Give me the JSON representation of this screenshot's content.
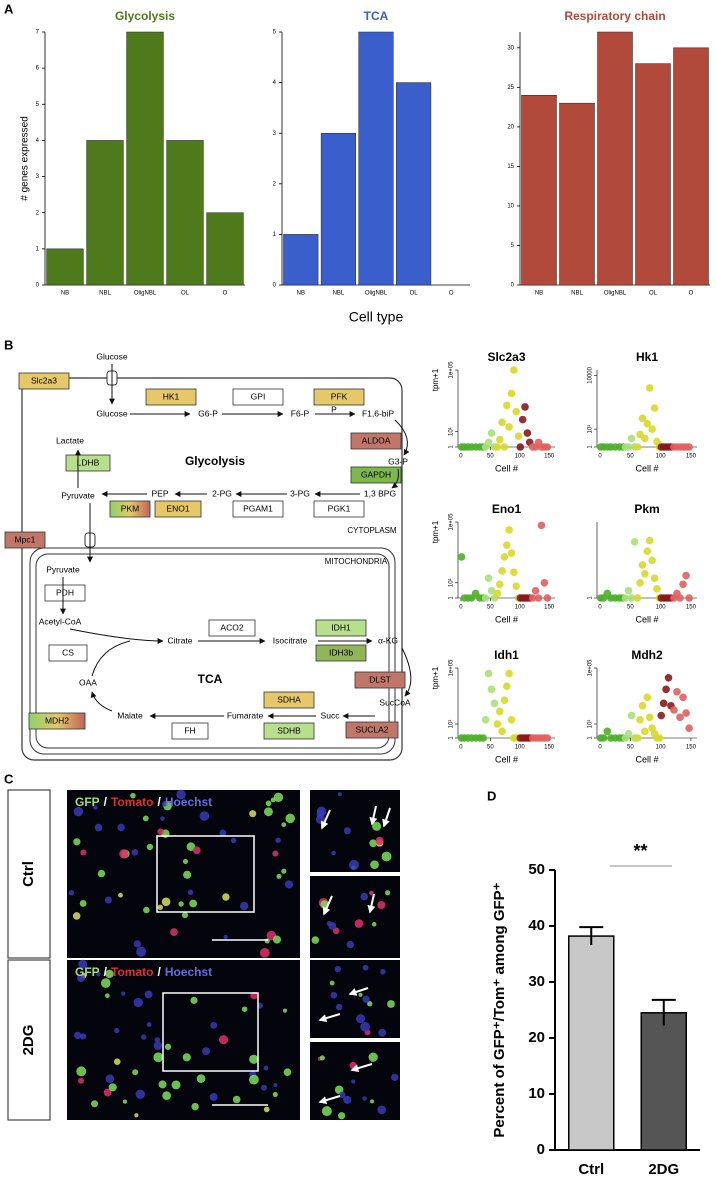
{
  "panel_labels": [
    "A",
    "B",
    "C",
    "D"
  ],
  "chart_data": [
    {
      "type": "bar",
      "title": "Glycolysis",
      "ylabel": "# genes expressed",
      "categories": [
        "NB",
        "NBL",
        "OligNBL",
        "OL",
        "O"
      ],
      "values": [
        1,
        4,
        7,
        4,
        2
      ],
      "color": "#4e7a1c",
      "ylim": [
        0,
        7
      ],
      "yticks": [
        0,
        1,
        2,
        3,
        4,
        5,
        6,
        7
      ]
    },
    {
      "type": "bar",
      "title": "TCA",
      "xlabel": "Cell type",
      "categories": [
        "NB",
        "NBL",
        "OligNBL",
        "OL",
        "O"
      ],
      "values": [
        1,
        3,
        5,
        4,
        0
      ],
      "color": "#3a5fcd",
      "ylim": [
        0,
        5
      ],
      "yticks": [
        0,
        1,
        2,
        3,
        4,
        5
      ]
    },
    {
      "type": "bar",
      "title": "Respiratory chain",
      "categories": [
        "NB",
        "NBL",
        "OligNBL",
        "OL",
        "O"
      ],
      "values": [
        24,
        23,
        32,
        28,
        30
      ],
      "color": "#b24a3b",
      "ylim": [
        0,
        32
      ],
      "yticks": [
        0,
        5,
        10,
        15,
        20,
        25,
        30
      ]
    },
    {
      "type": "scatter",
      "title": "Slc2a3",
      "ylabel": "tpm+1",
      "xlabel": "Cell #",
      "log_y": true,
      "xlim": [
        -5,
        160
      ],
      "ylim": [
        1,
        100000
      ],
      "xticks": [
        0,
        50,
        100,
        150
      ],
      "yticks": [
        1,
        {
          "value": 10,
          "label": "10¹"
        },
        {
          "value": 100000,
          "label": "1e+05"
        }
      ],
      "series": [
        {
          "color": "#4caf2a",
          "x": [
            1,
            6,
            12,
            18,
            25,
            32,
            38
          ],
          "values": [
            1,
            1,
            1,
            1,
            1,
            1,
            1
          ]
        },
        {
          "color": "#a8e07a",
          "x": [
            42,
            47,
            52,
            57
          ],
          "values": [
            1,
            2,
            8,
            1
          ]
        },
        {
          "color": "#d8d82a",
          "x": [
            62,
            66,
            70,
            74,
            78,
            82,
            86,
            90,
            94,
            98
          ],
          "values": [
            1,
            3,
            40,
            1,
            500,
            20,
            3000,
            100000,
            200,
            5
          ]
        },
        {
          "color": "#8b1a1a",
          "x": [
            101,
            105,
            109,
            113,
            117
          ],
          "values": [
            1,
            60,
            400,
            8,
            2
          ]
        },
        {
          "color": "#e06060",
          "x": [
            122,
            127,
            132,
            137,
            142,
            147
          ],
          "values": [
            1,
            1,
            2,
            1,
            1,
            1
          ]
        }
      ]
    },
    {
      "type": "scatter",
      "title": "Hk1",
      "xlabel": "Cell #",
      "log_y": true,
      "xlim": [
        -5,
        160
      ],
      "ylim": [
        1,
        20000
      ],
      "xticks": [
        0,
        50,
        100,
        150
      ],
      "yticks": [
        1,
        {
          "value": 10,
          "label": "10¹"
        },
        10000
      ],
      "series": [
        {
          "color": "#4caf2a",
          "x": [
            1,
            6,
            12,
            18,
            25,
            32,
            38
          ],
          "values": [
            1,
            1,
            1,
            1,
            1,
            1,
            1
          ]
        },
        {
          "color": "#a8e07a",
          "x": [
            42,
            47,
            52,
            57
          ],
          "values": [
            1,
            1,
            3,
            1
          ]
        },
        {
          "color": "#d8d82a",
          "x": [
            62,
            66,
            70,
            74,
            78,
            82,
            86,
            90,
            94,
            98
          ],
          "values": [
            1,
            5,
            40,
            3,
            20,
            2000,
            10,
            150,
            2,
            1
          ]
        },
        {
          "color": "#8b1a1a",
          "x": [
            101,
            105,
            109,
            113,
            117
          ],
          "values": [
            1,
            1,
            1,
            1,
            1
          ]
        },
        {
          "color": "#e06060",
          "x": [
            122,
            127,
            132,
            137,
            142,
            147
          ],
          "values": [
            1,
            1,
            1,
            1,
            1,
            1
          ]
        }
      ]
    },
    {
      "type": "scatter",
      "title": "Eno1",
      "ylabel": "tpm+1",
      "xlabel": "Cell #",
      "log_y": true,
      "xlim": [
        -5,
        160
      ],
      "ylim": [
        1,
        100000
      ],
      "xticks": [
        0,
        50,
        100,
        150
      ],
      "yticks": [
        1,
        {
          "value": 10,
          "label": "10¹"
        },
        {
          "value": 100000,
          "label": "1e+05"
        }
      ],
      "series": [
        {
          "color": "#4caf2a",
          "x": [
            1,
            6,
            12,
            18,
            25,
            32,
            38
          ],
          "values": [
            500,
            1,
            1,
            1,
            2,
            1,
            1
          ]
        },
        {
          "color": "#a8e07a",
          "x": [
            42,
            47,
            52,
            57
          ],
          "values": [
            1,
            20,
            3,
            1
          ]
        },
        {
          "color": "#d8d82a",
          "x": [
            62,
            66,
            70,
            74,
            78,
            82,
            86,
            90,
            94,
            98
          ],
          "values": [
            2,
            8,
            60,
            500,
            3000,
            30000,
            900,
            50,
            6,
            1
          ]
        },
        {
          "color": "#8b1a1a",
          "x": [
            101,
            105,
            109,
            113,
            117
          ],
          "values": [
            1,
            1,
            1,
            1,
            1
          ]
        },
        {
          "color": "#e06060",
          "x": [
            122,
            127,
            132,
            137,
            142,
            147
          ],
          "values": [
            1,
            3,
            1,
            60000,
            10,
            1
          ]
        }
      ]
    },
    {
      "type": "scatter",
      "title": "Pkm",
      "xlabel": "Cell #",
      "log_y": true,
      "xlim": [
        -5,
        160
      ],
      "ylim": [
        1,
        100000
      ],
      "xticks": [
        0,
        50,
        100,
        150
      ],
      "yticks": [
        1
      ],
      "series": [
        {
          "color": "#4caf2a",
          "x": [
            1,
            6,
            12,
            18,
            25,
            32,
            38
          ],
          "values": [
            1,
            1,
            2,
            1,
            1,
            1,
            1
          ]
        },
        {
          "color": "#a8e07a",
          "x": [
            42,
            47,
            52,
            57
          ],
          "values": [
            1,
            3,
            1,
            5000
          ]
        },
        {
          "color": "#d8d82a",
          "x": [
            62,
            66,
            70,
            74,
            78,
            82,
            86,
            90,
            94,
            98
          ],
          "values": [
            1,
            10,
            150,
            40,
            1200,
            6000,
            300,
            20,
            4,
            1
          ]
        },
        {
          "color": "#8b1a1a",
          "x": [
            101,
            105,
            109,
            113,
            117
          ],
          "values": [
            1,
            1,
            1,
            1,
            1
          ]
        },
        {
          "color": "#e06060",
          "x": [
            122,
            127,
            132,
            137,
            142,
            147
          ],
          "values": [
            1,
            2,
            1,
            8,
            30,
            1
          ]
        }
      ]
    },
    {
      "type": "scatter",
      "title": "Idh1",
      "ylabel": "tpm+1",
      "xlabel": "Cell #",
      "log_y": true,
      "xlim": [
        -5,
        160
      ],
      "ylim": [
        1,
        100000
      ],
      "xticks": [
        0,
        50,
        100,
        150
      ],
      "yticks": [
        1,
        {
          "value": 10,
          "label": "10¹"
        },
        {
          "value": 100000,
          "label": "1e+05"
        }
      ],
      "series": [
        {
          "color": "#4caf2a",
          "x": [
            1,
            6,
            12,
            18,
            25,
            32,
            38
          ],
          "values": [
            1,
            1,
            1,
            1,
            1,
            1,
            1
          ]
        },
        {
          "color": "#a8e07a",
          "x": [
            42,
            47,
            52,
            57
          ],
          "values": [
            20,
            40000,
            3000,
            300
          ]
        },
        {
          "color": "#d8d82a",
          "x": [
            62,
            66,
            70,
            74,
            78,
            82,
            86,
            90,
            94,
            98
          ],
          "values": [
            10,
            80,
            3,
            500,
            5000,
            40000,
            20,
            1,
            1,
            1
          ]
        },
        {
          "color": "#8b1a1a",
          "x": [
            101,
            105,
            109,
            113,
            117
          ],
          "values": [
            1,
            1,
            1,
            1,
            1
          ]
        },
        {
          "color": "#e06060",
          "x": [
            122,
            127,
            132,
            137,
            142,
            147
          ],
          "values": [
            1,
            1,
            1,
            1,
            1,
            1
          ]
        }
      ]
    },
    {
      "type": "scatter",
      "title": "Mdh2",
      "xlabel": "Cell #",
      "log_y": true,
      "xlim": [
        -5,
        160
      ],
      "ylim": [
        1,
        100000
      ],
      "xticks": [
        0,
        50,
        100,
        150
      ],
      "yticks": [
        1,
        {
          "value": 10,
          "label": "10¹"
        },
        {
          "value": 100000,
          "label": "1e+05"
        }
      ],
      "series": [
        {
          "color": "#4caf2a",
          "x": [
            1,
            6,
            12,
            18,
            25,
            32,
            38
          ],
          "values": [
            1,
            1,
            3,
            1,
            1,
            1,
            1
          ]
        },
        {
          "color": "#a8e07a",
          "x": [
            42,
            47,
            52,
            57
          ],
          "values": [
            1,
            2,
            40,
            1
          ]
        },
        {
          "color": "#d8d82a",
          "x": [
            62,
            66,
            70,
            74,
            78,
            82,
            86,
            90,
            94,
            98
          ],
          "values": [
            1,
            20,
            200,
            3,
            800,
            30,
            5,
            2,
            1,
            1
          ]
        },
        {
          "color": "#8b1a1a",
          "x": [
            101,
            105,
            109,
            113,
            117
          ],
          "values": [
            40,
            300,
            3000,
            20000,
            200
          ]
        },
        {
          "color": "#e06060",
          "x": [
            122,
            127,
            132,
            137,
            142,
            147
          ],
          "values": [
            100,
            2000,
            30,
            800,
            60,
            5
          ]
        }
      ]
    },
    {
      "type": "bar",
      "ylabel": "Percent of GFP⁺/Tom⁺ among GFP⁺",
      "categories": [
        "Ctrl",
        "2DG"
      ],
      "values": [
        38.2,
        24.5
      ],
      "errors": [
        1.6,
        2.3
      ],
      "colors": [
        "#c8c8c8",
        "#555555"
      ],
      "annotation": "**",
      "ylim": [
        0,
        50
      ],
      "yticks": [
        0,
        10,
        20,
        30,
        40,
        50
      ]
    }
  ],
  "pathway": {
    "glucose_ext": "Glucose",
    "slc2a3": "Slc2a3",
    "glucose": "Glucose",
    "hk1": "HK1",
    "g6p": "G6-P",
    "gpi": "GPI",
    "f6p": "F6-P",
    "pfk": "PFK",
    "p": "P",
    "f16bp": "F1,6-biP",
    "aldoa": "ALDOA",
    "g3p": "G3-P",
    "gapdh": "GAPDH",
    "bpg": "1,3 BPG",
    "pgk1": "PGK1",
    "pg3": "3-PG",
    "pgam1": "PGAM1",
    "pg2": "2-PG",
    "eno1": "ENO1",
    "pep": "PEP",
    "pkm": "PKM",
    "pyruvate": "Pyruvate",
    "ldhb": "LDHB",
    "lactate": "Lactate",
    "glycolysis": "Glycolysis",
    "cytoplasm": "CYTOPLASM",
    "mpc1": "Mpc1",
    "mitochondria": "MITOCHONDRIA",
    "pyruvate_mito": "Pyruvate",
    "pdh": "PDH",
    "acetyl_coa": "Acetyl-CoA",
    "cs": "CS",
    "citrate": "Citrate",
    "aco2": "ACO2",
    "isocitrate": "Isocitrate",
    "idh1": "IDH1",
    "idh3b": "IDH3b",
    "akg": "α-KG",
    "dlst": "DLST",
    "succoa": "SucCoA",
    "sucla2": "SUCLA2",
    "succ": "Succ",
    "sdha": "SDHA",
    "sdhb": "SDHB",
    "fumarate": "Fumarate",
    "fh": "FH",
    "malate": "Malate",
    "mdh2": "MDH2",
    "oaa": "OAA",
    "tca": "TCA"
  },
  "microscopy": {
    "stains": {
      "gfp": "GFP",
      "separator": "/",
      "tomato": "Tomato",
      "hoechst": "Hoechst"
    },
    "conditions": [
      "Ctrl",
      "2DG"
    ]
  }
}
